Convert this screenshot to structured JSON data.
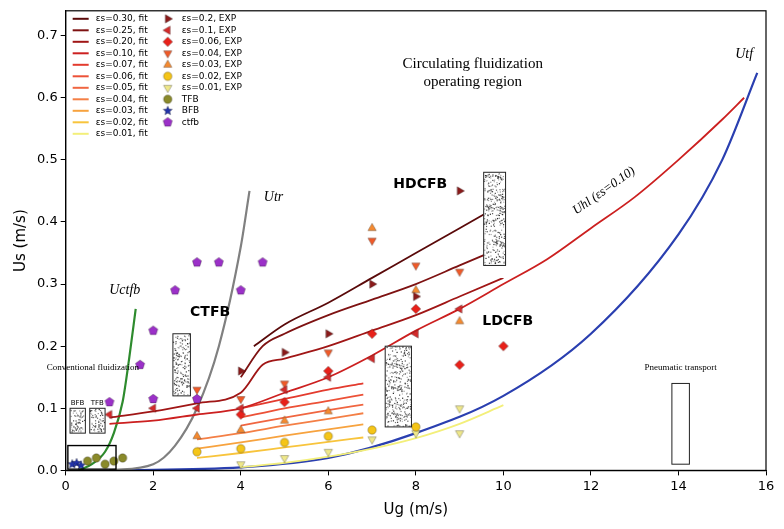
{
  "chart_data": {
    "type": "scatter",
    "x_label": "Ug (m/s)",
    "y_label": "Us (m/s)",
    "xlim": [
      0,
      16
    ],
    "ylim": [
      0,
      0.74
    ],
    "xticks": [
      0,
      2,
      4,
      6,
      8,
      10,
      12,
      14,
      16
    ],
    "yticks": [
      {
        "value": 0,
        "label": "0.0"
      },
      0.1,
      0.2,
      0.3,
      0.4,
      0.5,
      0.6,
      0.7
    ],
    "grid": false,
    "legend": "upper left",
    "series": [
      {
        "name": "εs=0.30, fit",
        "type": "line",
        "line_style": "solid",
        "color": "#5a0a0a",
        "x": [
          4.3,
          5,
          6,
          7,
          8,
          9,
          10
        ],
        "values": [
          0.2,
          0.235,
          0.27,
          0.31,
          0.35,
          0.39,
          0.43
        ]
      },
      {
        "name": "εs=0.25, fit",
        "type": "line",
        "line_style": "solid",
        "color": "#7e1212",
        "x": [
          4,
          4.5,
          5,
          6,
          7,
          8,
          9,
          10
        ],
        "values": [
          0.15,
          0.2,
          0.22,
          0.25,
          0.275,
          0.3,
          0.33,
          0.36
        ]
      },
      {
        "name": "εs=0.20, fit",
        "type": "line",
        "line_style": "solid",
        "color": "#a01616",
        "x": [
          1,
          2,
          3,
          4,
          4.5,
          5,
          6,
          7,
          8,
          9,
          10
        ],
        "values": [
          0.085,
          0.095,
          0.108,
          0.125,
          0.17,
          0.18,
          0.2,
          0.225,
          0.25,
          0.28,
          0.31
        ]
      },
      {
        "name": "εs=0.10, fit",
        "type": "line",
        "line_style": "solid",
        "color": "#cc2020",
        "x": [
          1,
          2,
          3,
          4,
          5,
          6,
          7,
          8,
          9,
          10,
          11,
          12,
          13,
          14,
          15,
          15.5
        ],
        "values": [
          0.075,
          0.08,
          0.09,
          0.1,
          0.125,
          0.15,
          0.185,
          0.225,
          0.26,
          0.3,
          0.34,
          0.39,
          0.44,
          0.5,
          0.565,
          0.6
        ]
      },
      {
        "name": "εs=0.07, fit",
        "type": "line",
        "line_style": "solid",
        "color": "#e33b2e",
        "x": [
          4,
          5,
          6,
          6.8
        ],
        "values": [
          0.1,
          0.115,
          0.13,
          0.14
        ]
      },
      {
        "name": "εs=0.06, fit",
        "type": "line",
        "line_style": "solid",
        "color": "#ec5137",
        "x": [
          4,
          5,
          6,
          6.8
        ],
        "values": [
          0.085,
          0.1,
          0.112,
          0.122
        ]
      },
      {
        "name": "εs=0.05, fit",
        "type": "line",
        "line_style": "solid",
        "color": "#f06641",
        "x": [
          4,
          5,
          6,
          6.8
        ],
        "values": [
          0.072,
          0.085,
          0.097,
          0.106
        ]
      },
      {
        "name": "εs=0.04, fit",
        "type": "line",
        "line_style": "solid",
        "color": "#f47f45",
        "x": [
          3,
          4,
          5,
          6,
          6.8
        ],
        "values": [
          0.05,
          0.06,
          0.072,
          0.083,
          0.092
        ]
      },
      {
        "name": "εs=0.03, fit",
        "type": "line",
        "line_style": "solid",
        "color": "#f7a33f",
        "x": [
          3,
          4,
          5,
          6,
          6.8
        ],
        "values": [
          0.035,
          0.045,
          0.056,
          0.066,
          0.074
        ]
      },
      {
        "name": "εs=0.02, fit",
        "type": "line",
        "line_style": "solid",
        "color": "#f8c43c",
        "x": [
          3,
          4,
          5,
          6,
          6.8
        ],
        "values": [
          0.02,
          0.028,
          0.037,
          0.046,
          0.053
        ]
      },
      {
        "name": "εs=0.01, fit",
        "type": "line",
        "line_style": "solid",
        "color": "#f3ef7a",
        "x": [
          4,
          5,
          6,
          7,
          8,
          9,
          10
        ],
        "values": [
          0.005,
          0.012,
          0.022,
          0.035,
          0.052,
          0.075,
          0.105
        ]
      },
      {
        "name": "εs=0.2, EXP",
        "type": "scatter",
        "marker": "triangle-right",
        "color": "#8b1a1a",
        "x": [
          4,
          5,
          6,
          7,
          8,
          9
        ],
        "values": [
          0.16,
          0.19,
          0.22,
          0.3,
          0.28,
          0.45
        ]
      },
      {
        "name": "εs=0.1, EXP",
        "type": "scatter",
        "marker": "triangle-left",
        "color": "#d42a2a",
        "x": [
          1,
          2,
          3,
          4,
          5,
          6,
          7,
          8,
          9
        ],
        "values": [
          0.09,
          0.1,
          0.1,
          0.1,
          0.13,
          0.15,
          0.18,
          0.22,
          0.26
        ]
      },
      {
        "name": "εs=0.06, EXP",
        "type": "scatter",
        "marker": "diamond",
        "color": "#e8211a",
        "x": [
          4,
          5,
          6,
          7,
          8,
          9,
          10
        ],
        "values": [
          0.09,
          0.11,
          0.16,
          0.22,
          0.26,
          0.17,
          0.2
        ]
      },
      {
        "name": "εs=0.04, EXP",
        "type": "scatter",
        "marker": "triangle-down",
        "color": "#f05a28",
        "x": [
          3,
          4,
          5,
          6,
          7,
          8,
          9
        ],
        "values": [
          0.13,
          0.115,
          0.14,
          0.19,
          0.37,
          0.33,
          0.32
        ]
      },
      {
        "name": "εs=0.03, EXP",
        "type": "scatter",
        "marker": "triangle",
        "color": "#f58a30",
        "x": [
          3,
          4,
          5,
          6,
          7,
          8,
          9
        ],
        "values": [
          0.055,
          0.065,
          0.08,
          0.095,
          0.39,
          0.29,
          0.24
        ]
      },
      {
        "name": "εs=0.02, EXP",
        "type": "scatter",
        "marker": "circle",
        "color": "#f5c518",
        "x": [
          3,
          4,
          5,
          6,
          7,
          8
        ],
        "values": [
          0.03,
          0.035,
          0.045,
          0.055,
          0.065,
          0.07
        ]
      },
      {
        "name": "εs=0.01, EXP",
        "type": "scatter",
        "marker": "triangle-down",
        "color": "#efe88a",
        "x": [
          4,
          5,
          6,
          7,
          8,
          9,
          9
        ],
        "values": [
          0.01,
          0.02,
          0.03,
          0.05,
          0.06,
          0.06,
          0.1
        ]
      },
      {
        "name": "TFB",
        "type": "scatter",
        "marker": "circle",
        "color": "#8a8a2a",
        "x": [
          0.5,
          0.7,
          0.9,
          1.1,
          1.3
        ],
        "values": [
          0.015,
          0.02,
          0.01,
          0.015,
          0.02
        ]
      },
      {
        "name": "BFB",
        "type": "scatter",
        "marker": "star",
        "color": "#2233aa",
        "x": [
          0.15,
          0.25,
          0.35
        ],
        "values": [
          0.01,
          0.012,
          0.008
        ]
      },
      {
        "name": "ctfb",
        "type": "scatter",
        "marker": "pentagon",
        "color": "#9b30c8",
        "x": [
          1,
          1.7,
          2,
          2.5,
          2,
          3,
          3,
          3.5,
          4,
          4.5
        ],
        "values": [
          0.11,
          0.17,
          0.225,
          0.29,
          0.115,
          0.115,
          0.335,
          0.335,
          0.29,
          0.335
        ]
      }
    ],
    "boundaries": [
      {
        "color": "#2e8b2e",
        "line_style": "solid",
        "x": [
          0.3,
          0.6,
          0.9,
          1.1,
          1.3,
          1.45,
          1.6
        ],
        "values": [
          0,
          0.01,
          0.03,
          0.06,
          0.11,
          0.18,
          0.26
        ]
      },
      {
        "color": "#808080",
        "line_style": "solid",
        "x": [
          1,
          2,
          2.5,
          3,
          3.5,
          4,
          4.2
        ],
        "values": [
          0,
          0.01,
          0.04,
          0.1,
          0.2,
          0.36,
          0.45
        ]
      },
      {
        "color": "#2a3fb0",
        "line_style": "solid",
        "x": [
          1,
          4,
          6,
          8,
          10,
          12,
          14,
          15,
          15.8
        ],
        "values": [
          0,
          0.005,
          0.02,
          0.06,
          0.12,
          0.22,
          0.38,
          0.5,
          0.64
        ]
      }
    ],
    "curve_labels": [
      {
        "text": "Uctfb",
        "x": 1.35,
        "y": 0.29
      },
      {
        "text": "Utr",
        "x": 4.75,
        "y": 0.44
      },
      {
        "text": "Utf",
        "x": 15.5,
        "y": 0.67
      }
    ],
    "inline_labels": [
      {
        "text": "Uhl (εs=0.10)",
        "x": 12.3,
        "y": 0.45
      }
    ],
    "operating_region": {
      "text": "Circulating fluidization operating region",
      "x": 9.3,
      "y": 0.64
    },
    "regions": [
      {
        "text": "HDCFB",
        "x": 8.1,
        "y": 0.46
      },
      {
        "text": "LDCFB",
        "x": 10.1,
        "y": 0.24
      },
      {
        "text": "CTFB",
        "x": 3.3,
        "y": 0.255
      }
    ],
    "notes": [
      {
        "text": "Conventional fluidization",
        "x": 0.62,
        "y": 0.165
      },
      {
        "text": "Pneumatic transport",
        "x": 14.05,
        "y": 0.165
      }
    ],
    "icon_labels": [
      {
        "text": "BFB",
        "x": 0.27,
        "y": 0.108
      },
      {
        "text": "TFB",
        "x": 0.72,
        "y": 0.108
      }
    ]
  }
}
